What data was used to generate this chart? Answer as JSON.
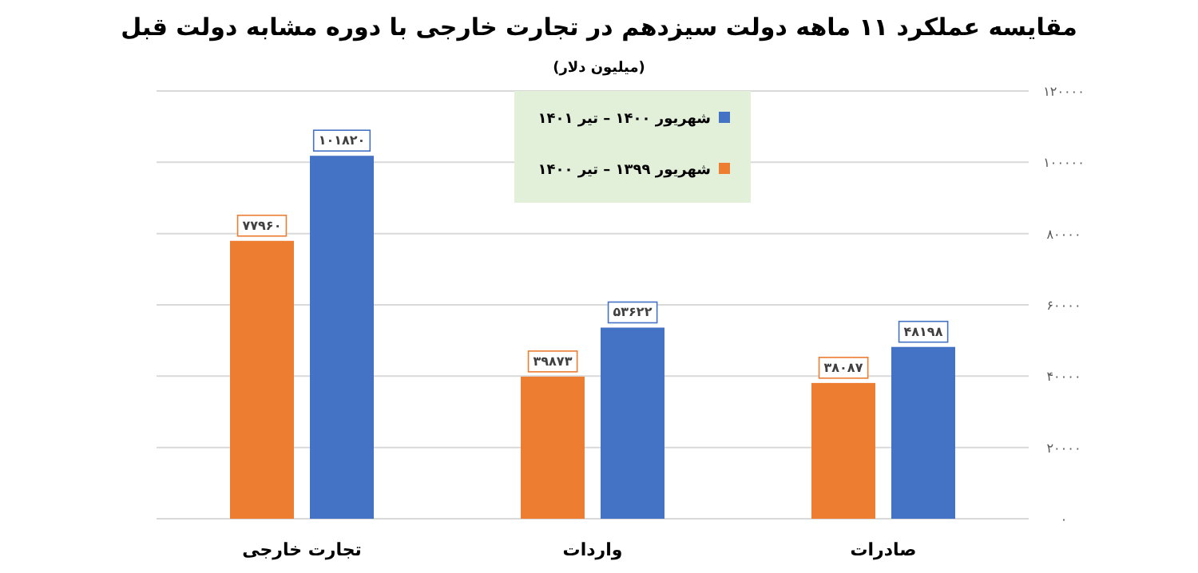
{
  "chart_data": {
    "type": "bar",
    "title": "مقایسه عملکرد ۱۱ ماهه دولت سیزدهم در تجارت خارجی با دوره مشابه دولت قبل",
    "subtitle": "(میلیون دلار)",
    "categories": [
      "تجارت خارجی",
      "واردات",
      "صادرات"
    ],
    "series": [
      {
        "name": "شهریور ۱۳۹۹ – تیر ۱۴۰۰",
        "color": "#ed7d31",
        "values": [
          77960,
          39873,
          38087
        ],
        "value_labels": [
          "۷۷۹۶۰",
          "۳۹۸۷۳",
          "۳۸۰۸۷"
        ]
      },
      {
        "name": "شهریور ۱۴۰۰ – تیر ۱۴۰۱",
        "color": "#4472c4",
        "values": [
          101820,
          53622,
          48198
        ],
        "value_labels": [
          "۱۰۱۸۲۰",
          "۵۳۶۲۲",
          "۴۸۱۹۸"
        ]
      }
    ],
    "ylim": [
      0,
      120000
    ],
    "yticks": [
      {
        "value": 0,
        "label": "۰"
      },
      {
        "value": 20000,
        "label": "۲۰۰۰۰"
      },
      {
        "value": 40000,
        "label": "۴۰۰۰۰"
      },
      {
        "value": 60000,
        "label": "۶۰۰۰۰"
      },
      {
        "value": 80000,
        "label": "۸۰۰۰۰"
      },
      {
        "value": 100000,
        "label": "۱۰۰۰۰۰"
      },
      {
        "value": 120000,
        "label": "۱۲۰۰۰۰"
      }
    ],
    "grid": "y",
    "legend": "top"
  }
}
